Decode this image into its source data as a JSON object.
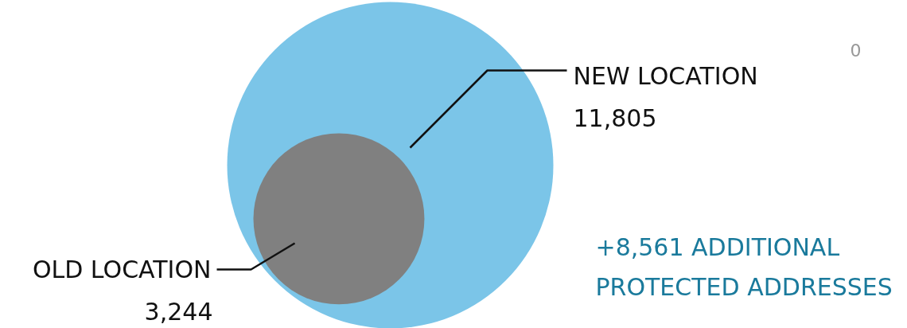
{
  "chart_data": {
    "type": "other",
    "categories": [
      "NEW LOCATION",
      "OLD LOCATION"
    ],
    "values": [
      11805,
      3244
    ],
    "value_labels": [
      "11,805",
      "3,244"
    ],
    "colors": [
      "#7bc5e8",
      "#808080"
    ],
    "annotations": [
      "+8,561 ADDITIONAL\nPROTECTED ADDRESSES",
      "0"
    ]
  }
}
